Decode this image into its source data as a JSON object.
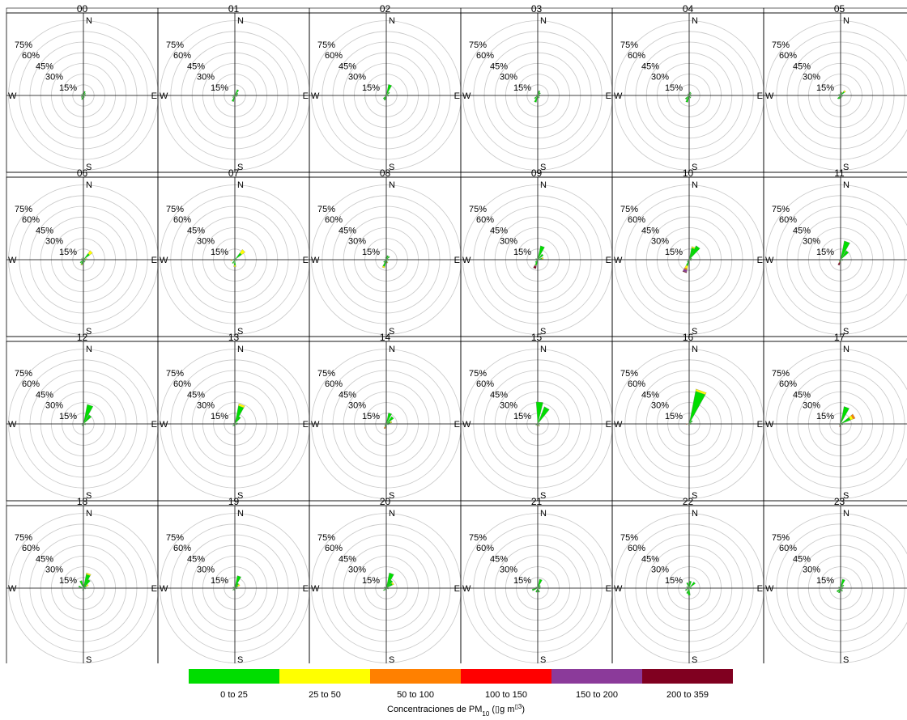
{
  "chart_data": {
    "type": "polar-bar",
    "compass_labels": {
      "n": "N",
      "e": "E",
      "s": "S",
      "w": "W"
    },
    "radial_ticks": [
      15,
      30,
      45,
      60,
      75
    ],
    "radial_tick_labels": [
      "15%",
      "30%",
      "45%",
      "60%",
      "75%"
    ],
    "radial_max": 90,
    "legend": {
      "xlabel_main": "Concentraciones de PM",
      "xlabel_sub": "10",
      "xlabel_unit_open": " (",
      "xlabel_unit_glyph": "▯",
      "xlabel_unit_g": "g m",
      "xlabel_unit_sup": "▯3",
      "xlabel_unit_close": ")",
      "bins": [
        {
          "label": "0 to 25",
          "color": "#00dd00"
        },
        {
          "label": "25 to 50",
          "color": "#ffff00"
        },
        {
          "label": "50 to 100",
          "color": "#ff8000"
        },
        {
          "label": "100 to 150",
          "color": "#ff0000"
        },
        {
          "label": "150 to 200",
          "color": "#8b3a9a"
        },
        {
          "label": "200 to 359",
          "color": "#800020"
        }
      ]
    },
    "panels": [
      {
        "title": "00",
        "sectors": [
          [
            20,
            [
              6
            ]
          ],
          [
            45,
            [
              4
            ]
          ],
          [
            70,
            [
              3
            ]
          ],
          [
            100,
            [
              3
            ]
          ],
          [
            150,
            [
              3
            ]
          ],
          [
            200,
            [
              6
            ]
          ],
          [
            230,
            [
              4
            ]
          ],
          [
            300,
            [
              3
            ]
          ],
          [
            340,
            [
              3
            ]
          ]
        ]
      },
      {
        "title": "01",
        "sectors": [
          [
            30,
            [
              9
            ]
          ],
          [
            55,
            [
              5
            ]
          ],
          [
            80,
            [
              4
            ]
          ],
          [
            120,
            [
              3
            ]
          ],
          [
            200,
            [
              9
            ]
          ],
          [
            225,
            [
              4
            ]
          ],
          [
            260,
            [
              4
            ]
          ],
          [
            300,
            [
              2
            ]
          ]
        ]
      },
      {
        "title": "02",
        "sectors": [
          [
            20,
            [
              16
            ]
          ],
          [
            45,
            [
              6
            ]
          ],
          [
            80,
            [
              3
            ]
          ],
          [
            110,
            [
              3
            ]
          ],
          [
            200,
            [
              7
            ]
          ],
          [
            220,
            [
              6
            ]
          ],
          [
            300,
            [
              2
            ]
          ]
        ]
      },
      {
        "title": "03",
        "sectors": [
          [
            20,
            [
              7
            ]
          ],
          [
            45,
            [
              5
            ]
          ],
          [
            75,
            [
              3
            ]
          ],
          [
            110,
            [
              3
            ]
          ],
          [
            150,
            [
              4
            ]
          ],
          [
            200,
            [
              10
            ]
          ],
          [
            225,
            [
              6
            ]
          ],
          [
            300,
            [
              2
            ]
          ]
        ]
      },
      {
        "title": "04",
        "sectors": [
          [
            20,
            [
              5
            ]
          ],
          [
            45,
            [
              4
            ]
          ],
          [
            110,
            [
              3
            ]
          ],
          [
            150,
            [
              4
            ]
          ],
          [
            200,
            [
              10
            ]
          ],
          [
            225,
            [
              7
            ]
          ],
          [
            320,
            [
              3
            ]
          ]
        ]
      },
      {
        "title": "05",
        "sectors": [
          [
            20,
            [
              4,
              1
            ]
          ],
          [
            45,
            [
              7,
              2
            ]
          ],
          [
            110,
            [
              3
            ]
          ],
          [
            150,
            [
              3
            ]
          ],
          [
            200,
            [
              5
            ]
          ],
          [
            220,
            [
              6
            ]
          ],
          [
            300,
            [
              3
            ]
          ]
        ]
      },
      {
        "title": "06",
        "sectors": [
          [
            45,
            [
              11,
              5
            ]
          ],
          [
            75,
            [
              3,
              2
            ]
          ],
          [
            110,
            [
              3
            ]
          ],
          [
            150,
            [
              4
            ]
          ],
          [
            200,
            [
              7,
              1
            ]
          ],
          [
            225,
            [
              6
            ]
          ],
          [
            300,
            [
              3
            ]
          ],
          [
            340,
            [
              3
            ]
          ]
        ]
      },
      {
        "title": "07",
        "sectors": [
          [
            45,
            [
              12,
              6
            ]
          ],
          [
            80,
            [
              3
            ]
          ],
          [
            110,
            [
              3
            ]
          ],
          [
            180,
            [
              8,
              2
            ]
          ],
          [
            210,
            [
              6
            ]
          ],
          [
            265,
            [
              4,
              0,
              2
            ]
          ],
          [
            300,
            [
              2
            ]
          ]
        ]
      },
      {
        "title": "08",
        "sectors": [
          [
            20,
            [
              6
            ]
          ],
          [
            45,
            [
              6
            ]
          ],
          [
            80,
            [
              3
            ]
          ],
          [
            110,
            [
              3
            ]
          ],
          [
            160,
            [
              4,
              1
            ]
          ],
          [
            200,
            [
              10,
              2
            ]
          ],
          [
            225,
            [
              5
            ]
          ],
          [
            340,
            [
              3
            ]
          ]
        ]
      },
      {
        "title": "09",
        "sectors": [
          [
            20,
            [
              20
            ]
          ],
          [
            45,
            [
              10
            ]
          ],
          [
            75,
            [
              6,
              2
            ]
          ],
          [
            200,
            [
              8,
              1,
              0,
              0,
              1,
              3
            ]
          ],
          [
            220,
            [
              5
            ]
          ],
          [
            300,
            [
              3
            ]
          ]
        ]
      },
      {
        "title": "10",
        "sectors": [
          [
            20,
            [
              17,
              2
            ]
          ],
          [
            35,
            [
              22
            ]
          ],
          [
            60,
            [
              4
            ]
          ],
          [
            110,
            [
              3
            ]
          ],
          [
            200,
            [
              9,
              4,
              2,
              0,
              3,
              1
            ]
          ],
          [
            220,
            [
              4
            ]
          ]
        ]
      },
      {
        "title": "11",
        "sectors": [
          [
            20,
            [
              27
            ]
          ],
          [
            40,
            [
              15
            ]
          ],
          [
            80,
            [
              3
            ]
          ],
          [
            110,
            [
              3
            ]
          ],
          [
            200,
            [
              3,
              1,
              0,
              1,
              0,
              3
            ]
          ],
          [
            225,
            [
              3
            ]
          ]
        ]
      },
      {
        "title": "12",
        "sectors": [
          [
            20,
            [
              28
            ]
          ],
          [
            40,
            [
              15
            ]
          ],
          [
            80,
            [
              3
            ]
          ],
          [
            110,
            [
              3
            ]
          ],
          [
            200,
            [
              3
            ]
          ],
          [
            225,
            [
              3
            ]
          ],
          [
            300,
            [
              2
            ]
          ]
        ]
      },
      {
        "title": "13",
        "sectors": [
          [
            20,
            [
              26,
              3
            ]
          ],
          [
            35,
            [
              12
            ]
          ],
          [
            75,
            [
              4
            ]
          ],
          [
            110,
            [
              3
            ]
          ],
          [
            200,
            [
              3
            ]
          ],
          [
            225,
            [
              4
            ]
          ],
          [
            300,
            [
              2
            ]
          ]
        ]
      },
      {
        "title": "14",
        "sectors": [
          [
            20,
            [
              16
            ]
          ],
          [
            45,
            [
              13
            ]
          ],
          [
            70,
            [
              6,
              2
            ]
          ],
          [
            110,
            [
              3
            ]
          ],
          [
            200,
            [
              4,
              1,
              2
            ]
          ],
          [
            225,
            [
              3
            ]
          ],
          [
            330,
            [
              2
            ]
          ]
        ]
      },
      {
        "title": "15",
        "sectors": [
          [
            5,
            [
              31
            ]
          ],
          [
            30,
            [
              26
            ]
          ],
          [
            75,
            [
              3
            ]
          ],
          [
            140,
            [
              3,
              1
            ]
          ],
          [
            200,
            [
              2,
              1
            ]
          ],
          [
            240,
            [
              3
            ]
          ]
        ]
      },
      {
        "title": "16",
        "sectors": [
          [
            20,
            [
              47,
              3
            ]
          ],
          [
            45,
            [
              6
            ]
          ],
          [
            75,
            [
              3
            ]
          ],
          [
            110,
            [
              2
            ]
          ],
          [
            200,
            [
              2
            ]
          ],
          [
            265,
            [
              2,
              0,
              1,
              1
            ]
          ]
        ]
      },
      {
        "title": "17",
        "sectors": [
          [
            20,
            [
              25
            ]
          ],
          [
            60,
            [
              15,
              4,
              3
            ]
          ],
          [
            110,
            [
              3
            ]
          ],
          [
            200,
            [
              3,
              0,
              0,
              1
            ]
          ],
          [
            240,
            [
              2
            ]
          ]
        ]
      },
      {
        "title": "18",
        "sectors": [
          [
            20,
            [
              20,
              2
            ]
          ],
          [
            35,
            [
              14
            ]
          ],
          [
            55,
            [
              5,
              3
            ]
          ],
          [
            110,
            [
              3
            ]
          ],
          [
            200,
            [
              3
            ]
          ],
          [
            290,
            [
              7
            ]
          ],
          [
            340,
            [
              11
            ]
          ]
        ]
      },
      {
        "title": "19",
        "sectors": [
          [
            20,
            [
              18
            ]
          ],
          [
            35,
            [
              8
            ]
          ],
          [
            55,
            [
              5,
              3
            ]
          ],
          [
            110,
            [
              3
            ]
          ],
          [
            200,
            [
              3
            ]
          ],
          [
            225,
            [
              4
            ]
          ],
          [
            300,
            [
              3
            ]
          ]
        ]
      },
      {
        "title": "20",
        "sectors": [
          [
            20,
            [
              22
            ]
          ],
          [
            35,
            [
              13
            ]
          ],
          [
            55,
            [
              10,
              2
            ]
          ],
          [
            110,
            [
              3
            ]
          ],
          [
            200,
            [
              3
            ]
          ],
          [
            230,
            [
              5
            ]
          ],
          [
            300,
            [
              3
            ]
          ]
        ]
      },
      {
        "title": "21",
        "sectors": [
          [
            20,
            [
              13
            ]
          ],
          [
            45,
            [
              5
            ]
          ],
          [
            75,
            [
              4
            ]
          ],
          [
            110,
            [
              3
            ]
          ],
          [
            160,
            [
              6
            ]
          ],
          [
            200,
            [
              6
            ]
          ],
          [
            250,
            [
              8
            ]
          ],
          [
            300,
            [
              3
            ]
          ]
        ]
      },
      {
        "title": "22",
        "sectors": [
          [
            10,
            [
              10
            ]
          ],
          [
            45,
            [
              11
            ]
          ],
          [
            80,
            [
              3
            ]
          ],
          [
            110,
            [
              3
            ]
          ],
          [
            180,
            [
              10
            ]
          ],
          [
            200,
            [
              8
            ]
          ],
          [
            240,
            [
              6
            ]
          ],
          [
            300,
            [
              4
            ]
          ],
          [
            340,
            [
              8
            ]
          ]
        ]
      },
      {
        "title": "23",
        "sectors": [
          [
            20,
            [
              13
            ]
          ],
          [
            45,
            [
              6
            ]
          ],
          [
            80,
            [
              4
            ]
          ],
          [
            110,
            [
              3
            ]
          ],
          [
            150,
            [
              5
            ]
          ],
          [
            200,
            [
              7
            ]
          ],
          [
            225,
            [
              7
            ]
          ],
          [
            300,
            [
              3
            ]
          ]
        ]
      }
    ]
  }
}
